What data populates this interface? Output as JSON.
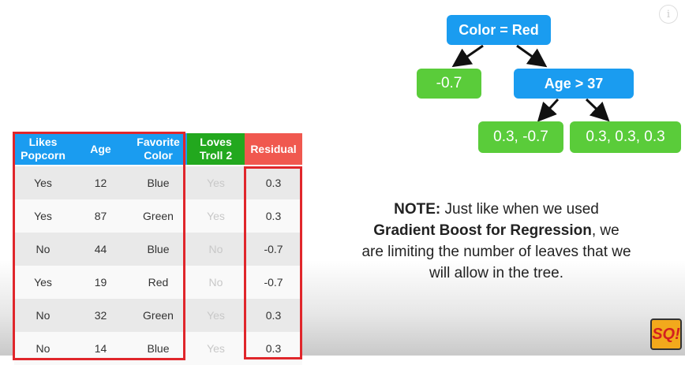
{
  "table": {
    "headers": [
      "Likes Popcorn",
      "Age",
      "Favorite Color",
      "Loves Troll 2",
      "Residual"
    ],
    "rows": [
      [
        "Yes",
        "12",
        "Blue",
        "Yes",
        "0.3"
      ],
      [
        "Yes",
        "87",
        "Green",
        "Yes",
        "0.3"
      ],
      [
        "No",
        "44",
        "Blue",
        "No",
        "-0.7"
      ],
      [
        "Yes",
        "19",
        "Red",
        "No",
        "-0.7"
      ],
      [
        "No",
        "32",
        "Green",
        "Yes",
        "0.3"
      ],
      [
        "No",
        "14",
        "Blue",
        "Yes",
        "0.3"
      ]
    ],
    "colors": {
      "features": "#1a9cf0",
      "target": "#22a81e",
      "residual": "#f0584f",
      "outline": "#e0262b"
    }
  },
  "tree": {
    "root": "Color = Red",
    "left_leaf": "-0.7",
    "right_node": "Age > 37",
    "leaf_a": "0.3, -0.7",
    "leaf_b": "0.3, 0.3, 0.3"
  },
  "note": {
    "label": "NOTE:",
    "part1": " Just like when we used ",
    "bold": "Gradient Boost for Regression",
    "part2": ", we are limiting the number of leaves that we will allow in the tree."
  },
  "icons": {
    "info": "info-icon",
    "logo": "statquest-logo"
  },
  "logo_text": "SQ!"
}
